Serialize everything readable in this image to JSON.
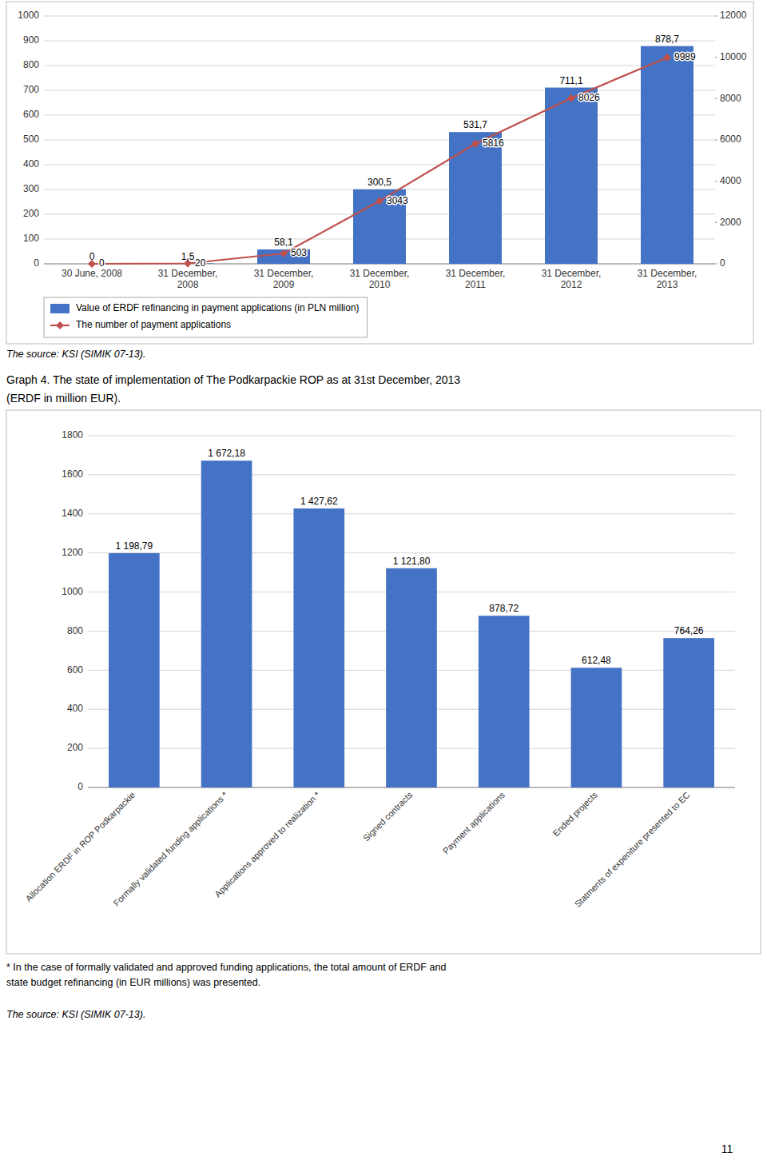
{
  "chart_data": [
    {
      "type": "bar",
      "categories": [
        "30 June, 2008",
        "31 December,\n2008",
        "31 December,\n2009",
        "31 December,\n2010",
        "31 December,\n2011",
        "31 December,\n2012",
        "31 December,\n2013"
      ],
      "series": [
        {
          "name": "Value of ERDF refinancing in payment applications (in PLN million)",
          "type": "bar",
          "color": "#4472C4",
          "values": [
            0,
            1.5,
            58.1,
            300.5,
            531.7,
            711.1,
            878.7
          ],
          "value_labels": [
            "0",
            "1,5",
            "58,1",
            "300,5",
            "531,7",
            "711,1",
            "878,7"
          ]
        },
        {
          "name": "The number of payment applications",
          "type": "line",
          "color": "#C0504D",
          "marker": "diamond",
          "axis": "y2",
          "values": [
            0,
            20,
            503,
            3043,
            5816,
            8026,
            9989
          ]
        }
      ],
      "ylim": [
        0,
        1000
      ],
      "yticks": [
        0,
        100,
        200,
        300,
        400,
        500,
        600,
        700,
        800,
        900,
        1000
      ],
      "y2lim": [
        0,
        12000
      ],
      "y2ticks": [
        0,
        2000,
        4000,
        6000,
        8000,
        10000,
        12000
      ],
      "grid": true,
      "legend": "bottom",
      "data_labels": true,
      "annotations": [
        "The source: KSI (SIMIK 07-13)."
      ]
    },
    {
      "type": "bar",
      "title": "Graph 4. The state of implementation of The Podkarpackie ROP as at 31st December, 2013",
      "subtitle": "(ERDF in million EUR).",
      "categories": [
        "Allocation ERDF in ROP Podkarpackie",
        "Formally validated funding applications *",
        "Applications approved to realization *",
        "Signed contracts",
        "Payment applications",
        "Ended projects",
        "Statments of expeniture presented to EC"
      ],
      "values": [
        1198.79,
        1672.18,
        1427.62,
        1121.8,
        878.72,
        612.48,
        764.26
      ],
      "value_labels": [
        "1 198,79",
        "1 672,18",
        "1 427,62",
        "1 121,80",
        "878,72",
        "612,48",
        "764,26"
      ],
      "color": "#4472C4",
      "ylim": [
        0,
        1800
      ],
      "yticks": [
        0,
        200,
        400,
        600,
        800,
        1000,
        1200,
        1400,
        1600,
        1800
      ],
      "grid": true,
      "data_labels": true,
      "annotations": [
        "* In the case of formally validated and approved funding applications, the total amount of ERDF and\nstate budget refinancing (in EUR millions) was presented.",
        "The source: KSI (SIMIK 07-13).",
        "11"
      ]
    }
  ]
}
